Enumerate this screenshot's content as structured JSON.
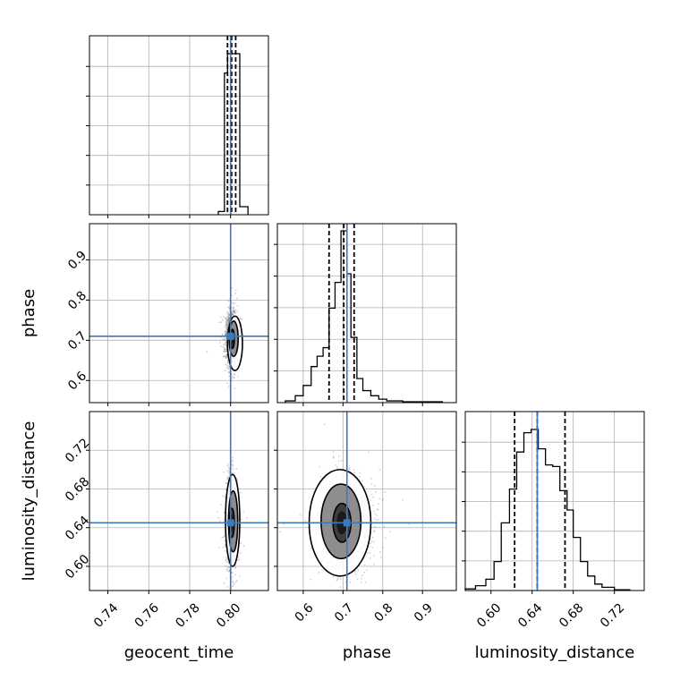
{
  "chart_data": {
    "type": "corner",
    "parameters": [
      "geocent_time",
      "phase",
      "luminosity_distance"
    ],
    "truth_color": "#3a7bbf",
    "truths": {
      "geocent_time": 0.8,
      "phase": 0.71,
      "luminosity_distance": 0.645
    },
    "ticks": {
      "geocent_time": [
        "0.74",
        "0.76",
        "0.78",
        "0.80"
      ],
      "phase": [
        "0.6",
        "0.7",
        "0.8",
        "0.9"
      ],
      "luminosity_distance": [
        "0.60",
        "0.64",
        "0.68",
        "0.72"
      ]
    },
    "panels": [
      {
        "type": "histogram",
        "param": "geocent_time",
        "quantiles": [
          0.7985,
          0.8005,
          0.8025
        ],
        "bins": [
          {
            "x0": 0.794,
            "x1": 0.797,
            "count": 2
          },
          {
            "x0": 0.797,
            "x1": 0.7985,
            "count": 88
          },
          {
            "x0": 0.7985,
            "x1": 0.8015,
            "count": 100
          },
          {
            "x0": 0.8015,
            "x1": 0.8045,
            "count": 100
          },
          {
            "x0": 0.8045,
            "x1": 0.8085,
            "count": 5
          }
        ]
      },
      {
        "type": "histogram",
        "param": "phase",
        "quantiles": [
          0.665,
          0.702,
          0.728
        ],
        "bins": [
          {
            "x0": 0.555,
            "x1": 0.58,
            "count": 1
          },
          {
            "x0": 0.58,
            "x1": 0.6,
            "count": 4
          },
          {
            "x0": 0.6,
            "x1": 0.62,
            "count": 10
          },
          {
            "x0": 0.62,
            "x1": 0.635,
            "count": 21
          },
          {
            "x0": 0.635,
            "x1": 0.65,
            "count": 27
          },
          {
            "x0": 0.65,
            "x1": 0.665,
            "count": 32
          },
          {
            "x0": 0.665,
            "x1": 0.68,
            "count": 55
          },
          {
            "x0": 0.68,
            "x1": 0.695,
            "count": 70
          },
          {
            "x0": 0.695,
            "x1": 0.71,
            "count": 100
          },
          {
            "x0": 0.71,
            "x1": 0.72,
            "count": 75
          },
          {
            "x0": 0.72,
            "x1": 0.735,
            "count": 38
          },
          {
            "x0": 0.735,
            "x1": 0.75,
            "count": 14
          },
          {
            "x0": 0.75,
            "x1": 0.77,
            "count": 7
          },
          {
            "x0": 0.77,
            "x1": 0.79,
            "count": 4
          },
          {
            "x0": 0.79,
            "x1": 0.81,
            "count": 2
          },
          {
            "x0": 0.81,
            "x1": 0.85,
            "count": 1
          },
          {
            "x0": 0.85,
            "x1": 0.95,
            "count": 0.5
          }
        ]
      },
      {
        "type": "histogram",
        "param": "luminosity_distance",
        "quantiles": [
          0.623,
          0.645,
          0.672
        ],
        "bins": [
          {
            "x0": 0.575,
            "x1": 0.585,
            "count": 1
          },
          {
            "x0": 0.585,
            "x1": 0.595,
            "count": 3
          },
          {
            "x0": 0.595,
            "x1": 0.603,
            "count": 7
          },
          {
            "x0": 0.603,
            "x1": 0.61,
            "count": 18
          },
          {
            "x0": 0.61,
            "x1": 0.618,
            "count": 42
          },
          {
            "x0": 0.618,
            "x1": 0.625,
            "count": 63
          },
          {
            "x0": 0.625,
            "x1": 0.632,
            "count": 86
          },
          {
            "x0": 0.632,
            "x1": 0.639,
            "count": 98
          },
          {
            "x0": 0.639,
            "x1": 0.646,
            "count": 100
          },
          {
            "x0": 0.646,
            "x1": 0.653,
            "count": 88
          },
          {
            "x0": 0.653,
            "x1": 0.66,
            "count": 78
          },
          {
            "x0": 0.66,
            "x1": 0.667,
            "count": 77
          },
          {
            "x0": 0.667,
            "x1": 0.674,
            "count": 62
          },
          {
            "x0": 0.674,
            "x1": 0.68,
            "count": 50
          },
          {
            "x0": 0.68,
            "x1": 0.687,
            "count": 33
          },
          {
            "x0": 0.687,
            "x1": 0.694,
            "count": 18
          },
          {
            "x0": 0.694,
            "x1": 0.701,
            "count": 9
          },
          {
            "x0": 0.701,
            "x1": 0.708,
            "count": 4
          },
          {
            "x0": 0.708,
            "x1": 0.72,
            "count": 2
          },
          {
            "x0": 0.72,
            "x1": 0.735,
            "count": 0.5
          }
        ]
      },
      {
        "type": "2d-density",
        "x_param": "geocent_time",
        "y_param": "phase",
        "center": [
          0.8005,
          0.705
        ],
        "spread": [
          0.0014,
          0.032
        ],
        "contour_levels": [
          {
            "x": [
              0.8,
              0.8018
            ],
            "y": [
              0.68,
              0.727
            ]
          },
          {
            "x": [
              0.7993,
              0.8037
            ],
            "y": [
              0.66,
              0.748
            ]
          },
          {
            "x": [
              0.7985,
              0.8058
            ],
            "y": [
              0.625,
              0.76
            ]
          }
        ]
      },
      {
        "type": "2d-density",
        "x_param": "geocent_time",
        "y_param": "luminosity_distance",
        "center": [
          0.8005,
          0.645
        ],
        "spread": [
          0.0014,
          0.022
        ],
        "contour_levels": [
          {
            "x": [
              0.7995,
              0.8018
            ],
            "y": [
              0.63,
              0.66
            ]
          },
          {
            "x": [
              0.799,
              0.8035
            ],
            "y": [
              0.615,
              0.678
            ]
          },
          {
            "x": [
              0.7975,
              0.8045
            ],
            "y": [
              0.6,
              0.695
            ]
          }
        ]
      },
      {
        "type": "2d-density",
        "x_param": "phase",
        "y_param": "luminosity_distance",
        "center": [
          0.705,
          0.645
        ],
        "spread": [
          0.032,
          0.022
        ],
        "contour_levels": [
          {
            "x": [
              0.675,
              0.72
            ],
            "y": [
              0.625,
              0.665
            ]
          },
          {
            "x": [
              0.645,
              0.745
            ],
            "y": [
              0.608,
              0.685
            ]
          },
          {
            "x": [
              0.615,
              0.77
            ],
            "y": [
              0.59,
              0.7
            ]
          }
        ]
      }
    ]
  }
}
